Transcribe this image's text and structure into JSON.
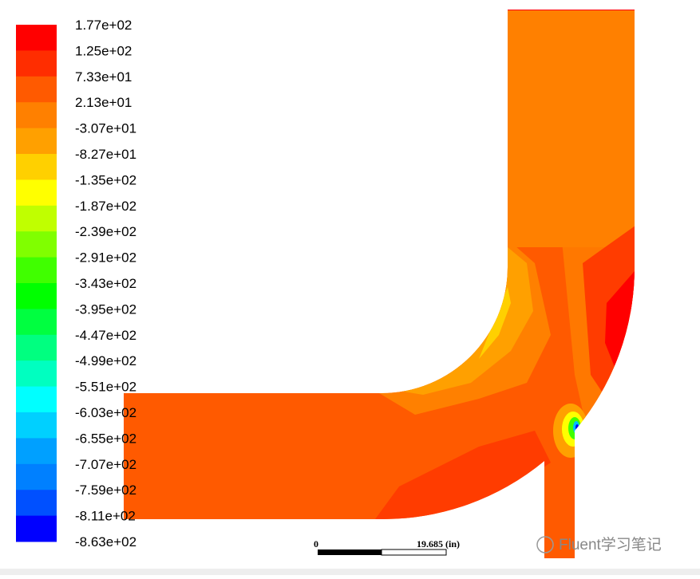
{
  "colorbar": {
    "labels": [
      "1.77e+02",
      "1.25e+02",
      "7.33e+01",
      "2.13e+01",
      "-3.07e+01",
      "-8.27e+01",
      "-1.35e+02",
      "-1.87e+02",
      "-2.39e+02",
      "-2.91e+02",
      "-3.43e+02",
      "-3.95e+02",
      "-4.47e+02",
      "-4.99e+02",
      "-5.51e+02",
      "-6.03e+02",
      "-6.55e+02",
      "-7.07e+02",
      "-7.59e+02",
      "-8.11e+02",
      "-8.63e+02"
    ]
  },
  "scale_bar": {
    "start": "0",
    "end": "19.685 (in)"
  },
  "watermark": "Fluent学习笔记"
}
